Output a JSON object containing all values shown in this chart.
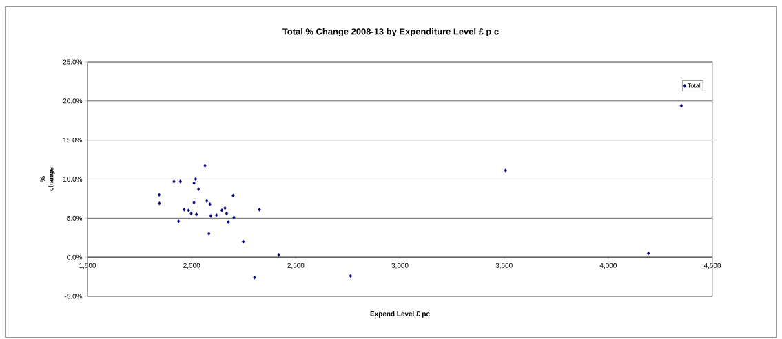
{
  "chart_data": {
    "type": "scatter",
    "title": "Total % Change 2008-13 by Expenditure Level £ p c",
    "xlabel": "Expend Level £ pc",
    "ylabel": "% change",
    "xlim": [
      1500,
      4500
    ],
    "xticks": [
      {
        "value": 1500,
        "label": "1,500"
      },
      {
        "value": 2000,
        "label": "2,000"
      },
      {
        "value": 2500,
        "label": "2,500"
      },
      {
        "value": 3000,
        "label": "3,000"
      },
      {
        "value": 3500,
        "label": "3,500"
      },
      {
        "value": 4000,
        "label": "4,000"
      },
      {
        "value": 4500,
        "label": "4,500"
      }
    ],
    "ylim": [
      -5,
      25
    ],
    "yticks": [
      {
        "value": -5,
        "label": "-5.0%"
      },
      {
        "value": 0,
        "label": "0.0%"
      },
      {
        "value": 5,
        "label": "5.0%"
      },
      {
        "value": 10,
        "label": "10.0%"
      },
      {
        "value": 15,
        "label": "15.0%"
      },
      {
        "value": 20,
        "label": "20.0%"
      },
      {
        "value": 25,
        "label": "25.0%"
      }
    ],
    "grid": "y",
    "legend": "top right",
    "marker": "diamond",
    "series": [
      {
        "name": "Total",
        "color": "#000080",
        "x": [
          1844,
          1845,
          1915,
          1946,
          1937,
          1964,
          1985,
          1998,
          2011,
          2019,
          2011,
          2023,
          2033,
          2064,
          2073,
          2088,
          2092,
          2083,
          2119,
          2145,
          2160,
          2168,
          2176,
          2199,
          2203,
          2248,
          2325,
          2418,
          2302,
          2763,
          4193,
          4351,
          3507
        ],
        "values": [
          8.0,
          6.9,
          9.7,
          9.7,
          4.6,
          6.1,
          6.0,
          5.6,
          9.5,
          10.0,
          7.0,
          5.5,
          8.7,
          11.7,
          7.2,
          6.8,
          5.3,
          3.0,
          5.4,
          6.0,
          6.3,
          5.6,
          4.5,
          7.9,
          5.1,
          2.0,
          6.1,
          0.3,
          -2.6,
          -2.4,
          0.5,
          19.4,
          11.1
        ]
      }
    ]
  }
}
